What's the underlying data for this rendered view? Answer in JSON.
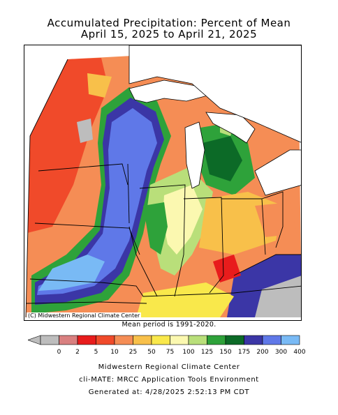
{
  "title": {
    "line1": "Accumulated Precipitation: Percent of Mean",
    "line2": "April 15, 2025 to April 21, 2025"
  },
  "map": {
    "copyright": "(C) Midwestern Regional Climate Center",
    "mean_period": "Mean period is 1991-2020."
  },
  "legend": {
    "bins": [
      {
        "label": "0",
        "color": "#bdbdbd"
      },
      {
        "label": "2",
        "color": "#d98080"
      },
      {
        "label": "5",
        "color": "#e81c1c"
      },
      {
        "label": "10",
        "color": "#f04a2a"
      },
      {
        "label": "25",
        "color": "#f58d55"
      },
      {
        "label": "50",
        "color": "#f8c04a"
      },
      {
        "label": "75",
        "color": "#f9e84b"
      },
      {
        "label": "100",
        "color": "#fbf8b0"
      },
      {
        "label": "125",
        "color": "#b9df7a"
      },
      {
        "label": "150",
        "color": "#2ea23a"
      },
      {
        "label": "175",
        "color": "#0c6a27"
      },
      {
        "label": "200",
        "color": "#3b36a6"
      },
      {
        "label": "300",
        "color": "#5f78e8"
      },
      {
        "label": "400",
        "color": "#79baf5"
      }
    ],
    "labels": [
      "0",
      "2",
      "5",
      "10",
      "25",
      "50",
      "75",
      "100",
      "125",
      "150",
      "175",
      "200",
      "300",
      "400"
    ]
  },
  "footer": {
    "line1": "Midwestern Regional Climate Center",
    "line2": "cli-MATE: MRCC Application Tools Environment",
    "line3": "Generated at: 4/28/2025 2:52:13 PM CDT"
  }
}
